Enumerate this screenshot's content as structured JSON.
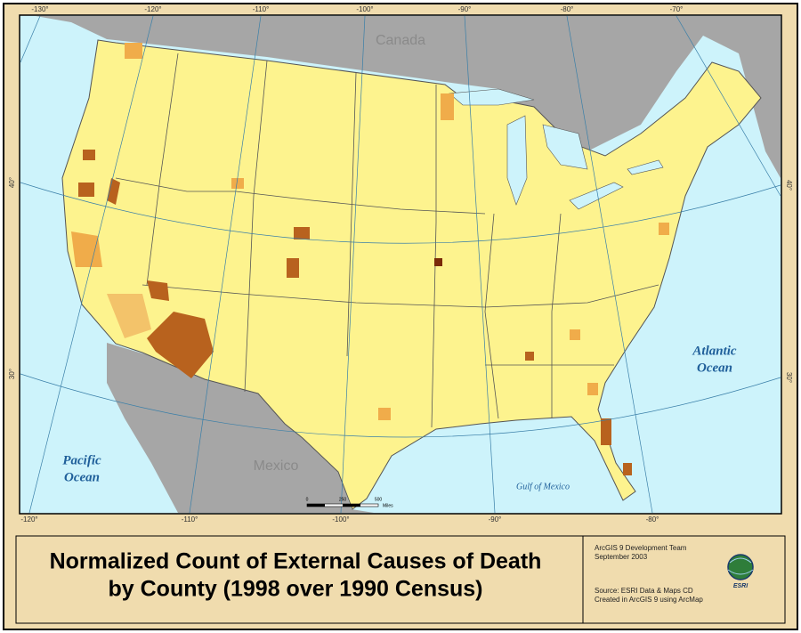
{
  "map": {
    "labels": {
      "canada": "Canada",
      "mexico": "Mexico",
      "pacific_ocean": [
        "Pacific",
        "Ocean"
      ],
      "atlantic_ocean": [
        "Atlantic",
        "Ocean"
      ],
      "gulf_of_mexico": "Gulf of Mexico"
    },
    "graticule": {
      "top": [
        "-130°",
        "-120°",
        "-110°",
        "-100°",
        "-90°",
        "-80°",
        "-70°"
      ],
      "bottom": [
        "-120°",
        "-110°",
        "-100°",
        "-90°",
        "-80°"
      ],
      "left": [
        "40°",
        "30°"
      ],
      "right": [
        "40°",
        "30°"
      ]
    },
    "scale_bar": [
      "0",
      "250",
      "500",
      "Miles"
    ]
  },
  "footer": {
    "title": [
      "Normalized Count of External Causes of Death",
      "by County (1998 over 1990 Census)"
    ],
    "credits": [
      "ArcGIS 9 Development Team",
      "September 2003",
      "Source: ESRI Data & Maps CD",
      "Created in ArcGIS 9 using ArcMap"
    ],
    "logo": "ESRI"
  }
}
